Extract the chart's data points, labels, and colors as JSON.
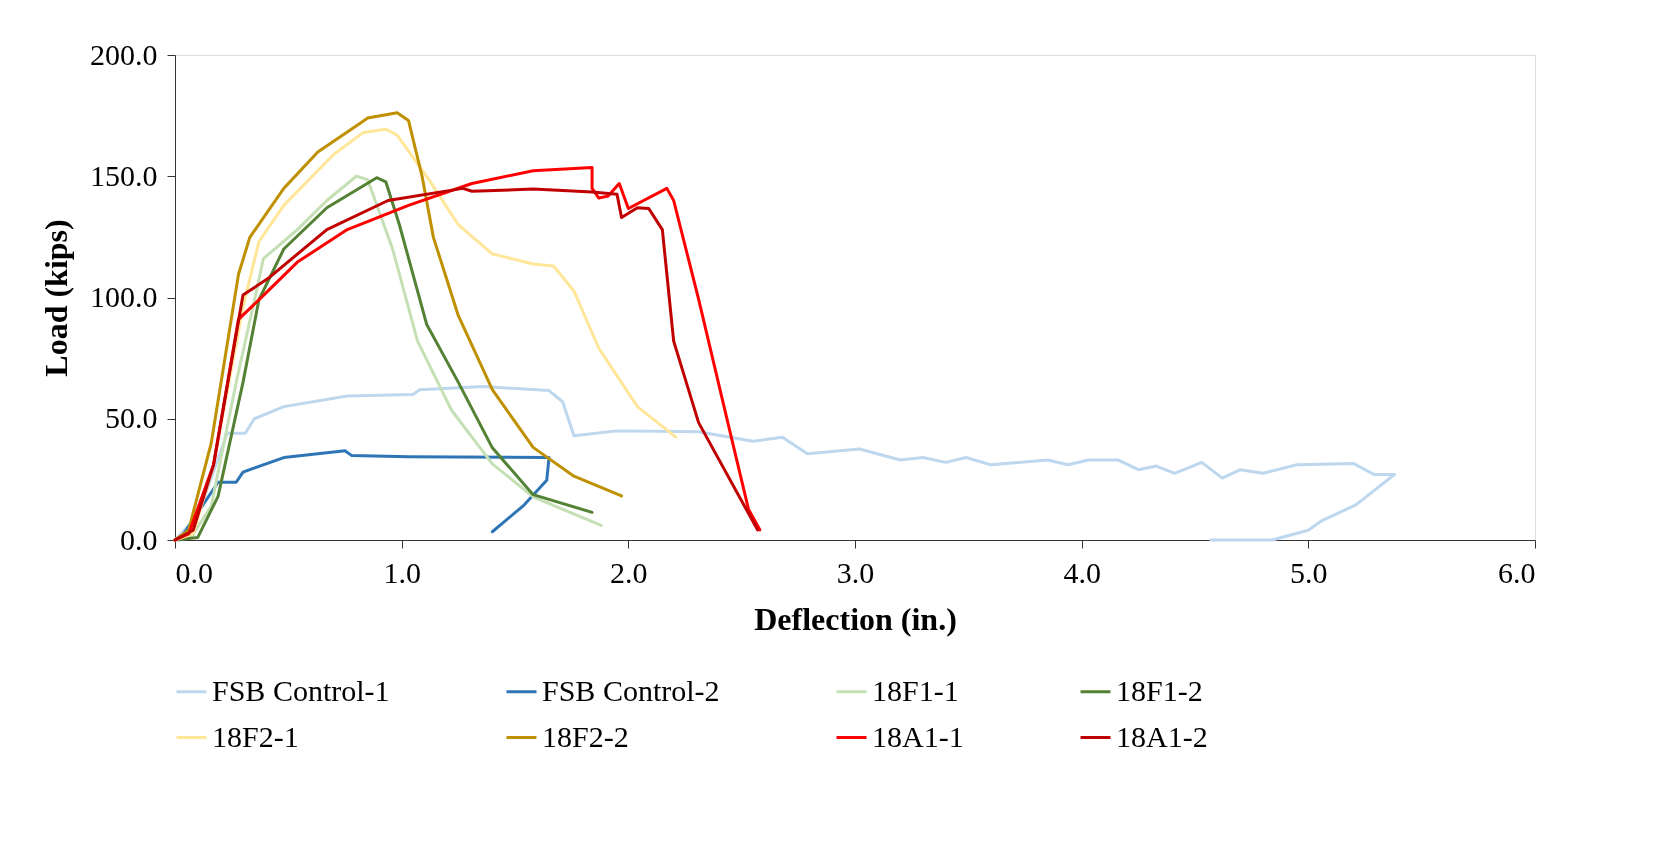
{
  "chart_data": {
    "type": "line",
    "xlabel": "Deflection (in.)",
    "ylabel": "Load (kips)",
    "xlim": [
      0,
      6
    ],
    "xticks": [
      {
        "value": 0,
        "label": "0.0"
      },
      {
        "value": 1,
        "label": "1.0"
      },
      {
        "value": 2,
        "label": "2.0"
      },
      {
        "value": 3,
        "label": "3.0"
      },
      {
        "value": 4,
        "label": "4.0"
      },
      {
        "value": 5,
        "label": "5.0"
      },
      {
        "value": 6,
        "label": "6.0"
      }
    ],
    "ylim": [
      0,
      200
    ],
    "yticks": [
      {
        "value": 0,
        "label": "0.0"
      },
      {
        "value": 50,
        "label": "50.0"
      },
      {
        "value": 100,
        "label": "100.0"
      },
      {
        "value": 150,
        "label": "150.0"
      },
      {
        "value": 200,
        "label": "200.0"
      }
    ],
    "grid": false,
    "legend": "bottom",
    "marker": "none",
    "line_style": "solid",
    "series": [
      {
        "name": "FSB Control-1",
        "color": "#bdd7ee",
        "x": [
          0,
          0.1,
          0.23,
          0.31,
          0.35,
          0.48,
          0.76,
          1.05,
          1.08,
          1.36,
          1.65,
          1.71,
          1.76,
          1.95,
          2.31,
          2.55,
          2.68,
          2.79,
          3.02,
          3.2,
          3.3,
          3.4,
          3.49,
          3.6,
          3.85,
          3.94,
          4.03,
          4.16,
          4.25,
          4.33,
          4.41,
          4.53,
          4.62,
          4.7,
          4.8,
          4.95,
          5.2,
          5.29,
          5.38,
          5.21,
          5.06,
          5.0,
          4.84,
          4.57
        ],
        "values": [
          0,
          10,
          44,
          44,
          50,
          55,
          59.4,
          60,
          62,
          63.3,
          61.6,
          57,
          43,
          45,
          44.6,
          40.7,
          42.4,
          35.6,
          37.5,
          33,
          34,
          32,
          34,
          31,
          33,
          31,
          33,
          33,
          29,
          30.5,
          27.5,
          32,
          25.5,
          29,
          27.5,
          31,
          31.5,
          27,
          27,
          14.5,
          8,
          4,
          0,
          0
        ]
      },
      {
        "name": "FSB Control-2",
        "color": "#2e75b6",
        "x": [
          0.02,
          0.19,
          0.27,
          0.3,
          0.48,
          0.75,
          0.78,
          1.03,
          1.65,
          1.64,
          1.54,
          1.4
        ],
        "values": [
          0,
          23.8,
          23.8,
          28,
          34,
          36.8,
          34.8,
          34.3,
          34,
          24.6,
          14.4,
          3.4
        ]
      },
      {
        "name": "18F1-1",
        "color": "#c5e0b4",
        "x": [
          0,
          0.07,
          0.16,
          0.27,
          0.36,
          0.39,
          0.54,
          0.67,
          0.8,
          0.85,
          0.96,
          1.07,
          1.22,
          1.4,
          1.58,
          1.88
        ],
        "values": [
          0,
          1,
          14,
          65,
          103,
          116,
          128,
          140,
          150,
          148.6,
          120,
          82,
          53.5,
          31.4,
          17.8,
          6
        ]
      },
      {
        "name": "18F1-2",
        "color": "#548235",
        "x": [
          0,
          0.1,
          0.19,
          0.3,
          0.37,
          0.48,
          0.67,
          0.89,
          0.93,
          0.99,
          1.11,
          1.25,
          1.4,
          1.58,
          1.84
        ],
        "values": [
          0,
          1,
          18,
          65,
          99,
          120,
          137,
          149.4,
          147.7,
          130,
          89,
          65,
          38,
          18.7,
          11.4
        ]
      },
      {
        "name": "18F2-1",
        "color": "#ffe699",
        "x": [
          0,
          0.08,
          0.17,
          0.3,
          0.37,
          0.48,
          0.7,
          0.83,
          0.93,
          0.98,
          1.12,
          1.25,
          1.4,
          1.58,
          1.67,
          1.76,
          1.87,
          2.04,
          2.21
        ],
        "values": [
          0,
          2.5,
          31,
          96,
          123,
          138,
          159,
          168,
          169.4,
          167,
          148.6,
          130,
          118,
          113.8,
          113,
          102.7,
          79,
          55,
          42.4
        ]
      },
      {
        "name": "18F2-2",
        "color": "#bf9000",
        "x": [
          0,
          0.06,
          0.16,
          0.28,
          0.33,
          0.48,
          0.63,
          0.83,
          0.85,
          0.98,
          1.03,
          1.09,
          1.14,
          1.25,
          1.4,
          1.58,
          1.76,
          1.97
        ],
        "values": [
          0,
          4,
          40,
          109.5,
          124.8,
          145,
          160,
          172.7,
          174,
          176.2,
          173,
          150,
          124.8,
          92.5,
          62,
          38.2,
          26.3,
          18.2
        ]
      },
      {
        "name": "18A1-1",
        "color": "#ff0000",
        "x": [
          0,
          0.06,
          0.17,
          0.28,
          0.37,
          0.54,
          0.76,
          1.03,
          1.31,
          1.58,
          1.84,
          1.84,
          1.87,
          1.91,
          1.96,
          2.0,
          2.17,
          2.2,
          2.31,
          2.44,
          2.53,
          2.58
        ],
        "values": [
          0,
          2.5,
          31,
          91,
          99,
          114.6,
          128,
          138,
          147,
          152.3,
          153.6,
          145,
          141,
          141.8,
          147,
          136.7,
          145,
          140,
          99.3,
          48,
          12.7,
          4.2
        ]
      },
      {
        "name": "18A1-2",
        "color": "#c00000",
        "x": [
          0,
          0.08,
          0.17,
          0.3,
          0.41,
          0.67,
          0.94,
          1.27,
          1.31,
          1.58,
          1.84,
          1.95,
          1.97,
          2.04,
          2.09,
          2.15,
          2.2,
          2.31,
          2.57
        ],
        "values": [
          0,
          4,
          31,
          101,
          107.8,
          128,
          140,
          145,
          143.8,
          144.7,
          143.5,
          142.6,
          133,
          137,
          136.7,
          128,
          82,
          48.4,
          4.2
        ]
      }
    ]
  }
}
